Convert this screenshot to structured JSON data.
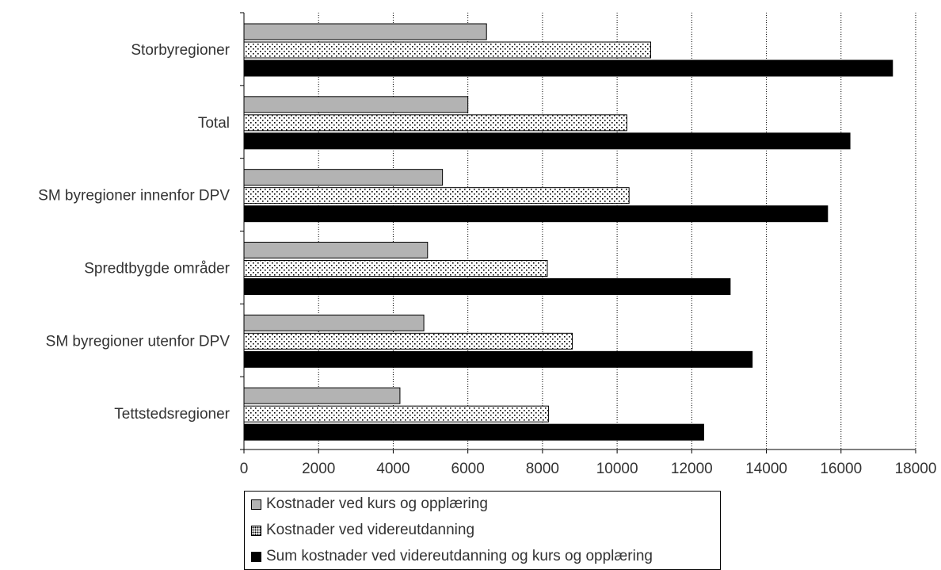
{
  "chart_data": {
    "type": "bar",
    "orientation": "horizontal",
    "categories": [
      "Storbyregioner",
      "Total",
      "SM byregioner innenfor DPV",
      "Spredtbygde områder",
      "SM byregioner utenfor DPV",
      "Tettstedsregioner"
    ],
    "series": [
      {
        "name": "Kostnader ved kurs og opplæring",
        "color": "#b3b3b3",
        "pattern": "solid-gray",
        "values": [
          6500,
          6000,
          5320,
          4920,
          4820,
          4180
        ]
      },
      {
        "name": "Kostnader ved videreutdanning",
        "color": "#ffffff",
        "pattern": "dotted",
        "values": [
          10900,
          10260,
          10320,
          8130,
          8800,
          8160
        ]
      },
      {
        "name": "Sum kostnader ved videreutdanning og kurs og opplæring",
        "color": "#000000",
        "pattern": "solid-black",
        "values": [
          17380,
          16240,
          15640,
          13030,
          13620,
          12320
        ]
      }
    ],
    "x_ticks": [
      "0",
      "2000",
      "4000",
      "6000",
      "8000",
      "10000",
      "12000",
      "14000",
      "16000",
      "18000"
    ],
    "xlim": [
      0,
      18000
    ],
    "grid": "vertical-dotted",
    "legend_position": "bottom"
  }
}
